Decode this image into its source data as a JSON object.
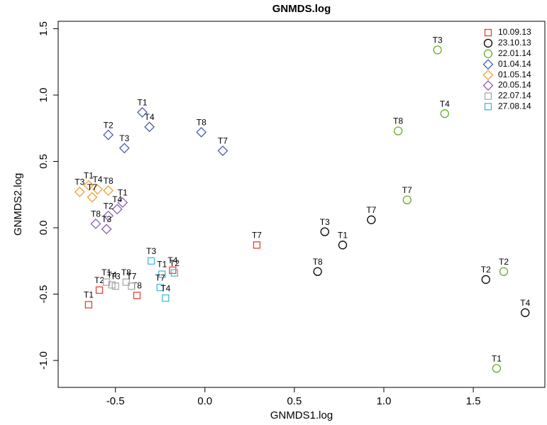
{
  "chart_data": {
    "type": "scatter",
    "title": "GNMDS.log",
    "x_label": "GNMDS1.log",
    "y_label": "GNMDS2.log",
    "xlim": [
      -0.82,
      1.9
    ],
    "ylim": [
      -1.203,
      1.556
    ],
    "xticks": [
      -0.5,
      {
        "value": 0,
        "label": "0.0"
      },
      0.5,
      {
        "value": 1,
        "label": "1.0"
      },
      1.5
    ],
    "yticks": [
      {
        "value": -1,
        "label": "-1.0"
      },
      -0.5,
      {
        "value": 0,
        "label": "0.0"
      },
      0.5,
      {
        "value": 1,
        "label": "1.0"
      },
      1.5
    ],
    "legend": "top-right",
    "series": [
      {
        "name": "10.09.13",
        "color": "#e8412f",
        "marker": "square",
        "labels": [
          "T7",
          "T1",
          "T2",
          "T8",
          "T4"
        ],
        "x": [
          0.29,
          -0.65,
          -0.59,
          -0.38,
          -0.18
        ],
        "y": [
          -0.13,
          -0.58,
          -0.47,
          -0.51,
          -0.32
        ]
      },
      {
        "name": "23.10.13",
        "color": "#000000",
        "marker": "circle",
        "labels": [
          "T3",
          "T7",
          "T1",
          "T8",
          "T2",
          "T4"
        ],
        "x": [
          0.67,
          0.93,
          0.77,
          0.63,
          1.57,
          1.79
        ],
        "y": [
          -0.03,
          0.06,
          -0.13,
          -0.33,
          -0.39,
          -0.64
        ]
      },
      {
        "name": "22.01.14",
        "color": "#6aaa2a",
        "marker": "circle",
        "labels": [
          "T3",
          "T4",
          "T8",
          "T7",
          "T2",
          "T1"
        ],
        "x": [
          1.3,
          1.34,
          1.08,
          1.13,
          1.67,
          1.63
        ],
        "y": [
          1.34,
          0.86,
          0.73,
          0.21,
          -0.33,
          -1.06
        ]
      },
      {
        "name": "01.04.14",
        "color": "#4a5bb5",
        "marker": "diamond",
        "labels": [
          "T1",
          "T4",
          "T2",
          "T3",
          "T8",
          "T7"
        ],
        "x": [
          -0.35,
          -0.31,
          -0.54,
          -0.45,
          -0.02,
          0.1
        ],
        "y": [
          0.87,
          0.76,
          0.7,
          0.6,
          0.72,
          0.58
        ]
      },
      {
        "name": "01.05.14",
        "color": "#f0a030",
        "marker": "diamond",
        "labels": [
          "T3",
          "T1",
          "T4",
          "T7",
          "T8"
        ],
        "x": [
          -0.7,
          -0.65,
          -0.6,
          -0.63,
          -0.54
        ],
        "y": [
          0.27,
          0.32,
          0.29,
          0.23,
          0.28
        ]
      },
      {
        "name": "20.05.14",
        "color": "#8a5cb5",
        "marker": "diamond",
        "labels": [
          "T1",
          "T4",
          "T2",
          "T8",
          "T3"
        ],
        "x": [
          -0.46,
          -0.49,
          -0.54,
          -0.61,
          -0.55
        ],
        "y": [
          0.19,
          0.14,
          0.09,
          0.03,
          -0.01
        ]
      },
      {
        "name": "22.07.14",
        "color": "#aaaaaa",
        "marker": "square",
        "labels": [
          "T1",
          "T4",
          "T3",
          "T8",
          "T7"
        ],
        "x": [
          -0.55,
          -0.52,
          -0.5,
          -0.44,
          -0.41
        ],
        "y": [
          -0.41,
          -0.43,
          -0.44,
          -0.41,
          -0.44
        ]
      },
      {
        "name": "27.08.14",
        "color": "#4ab8d8",
        "marker": "square",
        "labels": [
          "T3",
          "T1",
          "T2",
          "T7",
          "T4"
        ],
        "x": [
          -0.3,
          -0.24,
          -0.17,
          -0.25,
          -0.22
        ],
        "y": [
          -0.25,
          -0.35,
          -0.34,
          -0.45,
          -0.53
        ]
      }
    ]
  }
}
